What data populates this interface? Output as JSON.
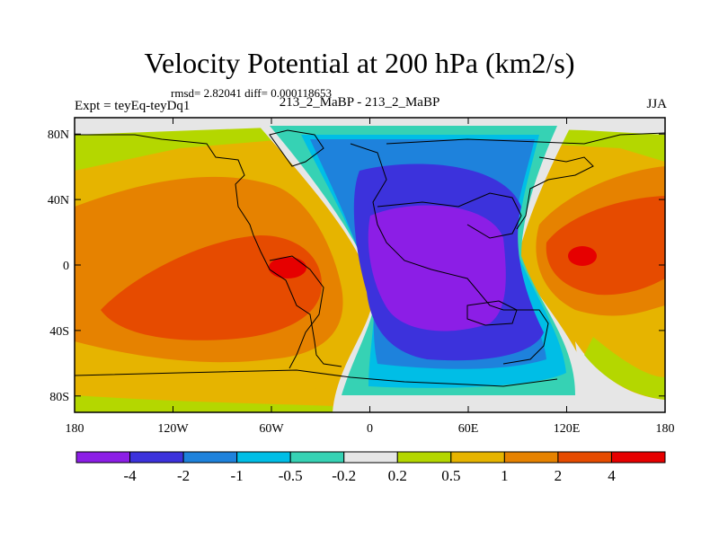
{
  "chart_data": {
    "type": "contour-map",
    "title": "Velocity Potential at 200 hPa (km2/s)",
    "stats_label": "rmsd= 2.82041 diff= 0.000118653",
    "left_label": "Expt = teyEq-teyDq1",
    "center_label": "213_2_MaBP - 213_2_MaBP",
    "right_label": "JJA",
    "x_ticks": [
      "180",
      "120W",
      "60W",
      "0",
      "60E",
      "120E",
      "180"
    ],
    "x_tick_lon": [
      -180,
      -120,
      -60,
      0,
      60,
      120,
      180
    ],
    "y_ticks": [
      "80N",
      "40N",
      "0",
      "40S",
      "80S"
    ],
    "y_tick_lat": [
      80,
      40,
      0,
      -40,
      -80
    ],
    "xlim": [
      -180,
      180
    ],
    "ylim": [
      -90,
      90
    ],
    "colorbar_labels": [
      "-4",
      "-2",
      "-1",
      "-0.5",
      "-0.2",
      "0.2",
      "0.5",
      "1",
      "2",
      "4"
    ],
    "colorbar_colors": [
      "#8c1ee6",
      "#3c32dc",
      "#1e82dc",
      "#00bee6",
      "#36d2b4",
      "#e6e6e6",
      "#b4d700",
      "#e6b400",
      "#e68200",
      "#e64b00",
      "#e60000"
    ],
    "extrema": [
      {
        "kind": "min",
        "lon": 42,
        "lat": 5,
        "value": "< -4"
      },
      {
        "kind": "max",
        "lon": -52,
        "lat": -2,
        "value": "> 4"
      },
      {
        "kind": "max",
        "lon": 131,
        "lat": 5,
        "value": "> 4"
      }
    ]
  }
}
